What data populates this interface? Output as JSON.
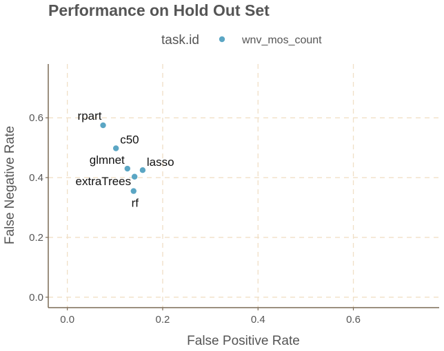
{
  "chart_data": {
    "type": "scatter",
    "title": "Performance on Hold Out Set",
    "xlabel": "False Positive Rate",
    "ylabel": "False Negative Rate",
    "xlim": [
      -0.04,
      0.78
    ],
    "ylim": [
      -0.035,
      0.78
    ],
    "x_ticks": [
      0.0,
      0.2,
      0.4,
      0.6
    ],
    "y_ticks": [
      0.0,
      0.2,
      0.4,
      0.6
    ],
    "x_tick_labels": [
      "0.0",
      "0.2",
      "0.4",
      "0.6"
    ],
    "y_tick_labels": [
      "0.0",
      "0.2",
      "0.4",
      "0.6"
    ],
    "grid": true,
    "legend_position": "top",
    "legend": {
      "title": "task.id",
      "entries": [
        "wnv_mos_count"
      ]
    },
    "series": [
      {
        "name": "wnv_mos_count",
        "color": "#5ba6c4",
        "points": [
          {
            "label": "rpart",
            "x": 0.075,
            "y": 0.575
          },
          {
            "label": "c50",
            "x": 0.102,
            "y": 0.498
          },
          {
            "label": "glmnet",
            "x": 0.126,
            "y": 0.43
          },
          {
            "label": "lasso",
            "x": 0.158,
            "y": 0.425
          },
          {
            "label": "extraTrees",
            "x": 0.141,
            "y": 0.403
          },
          {
            "label": "rf",
            "x": 0.139,
            "y": 0.355
          }
        ]
      }
    ]
  }
}
